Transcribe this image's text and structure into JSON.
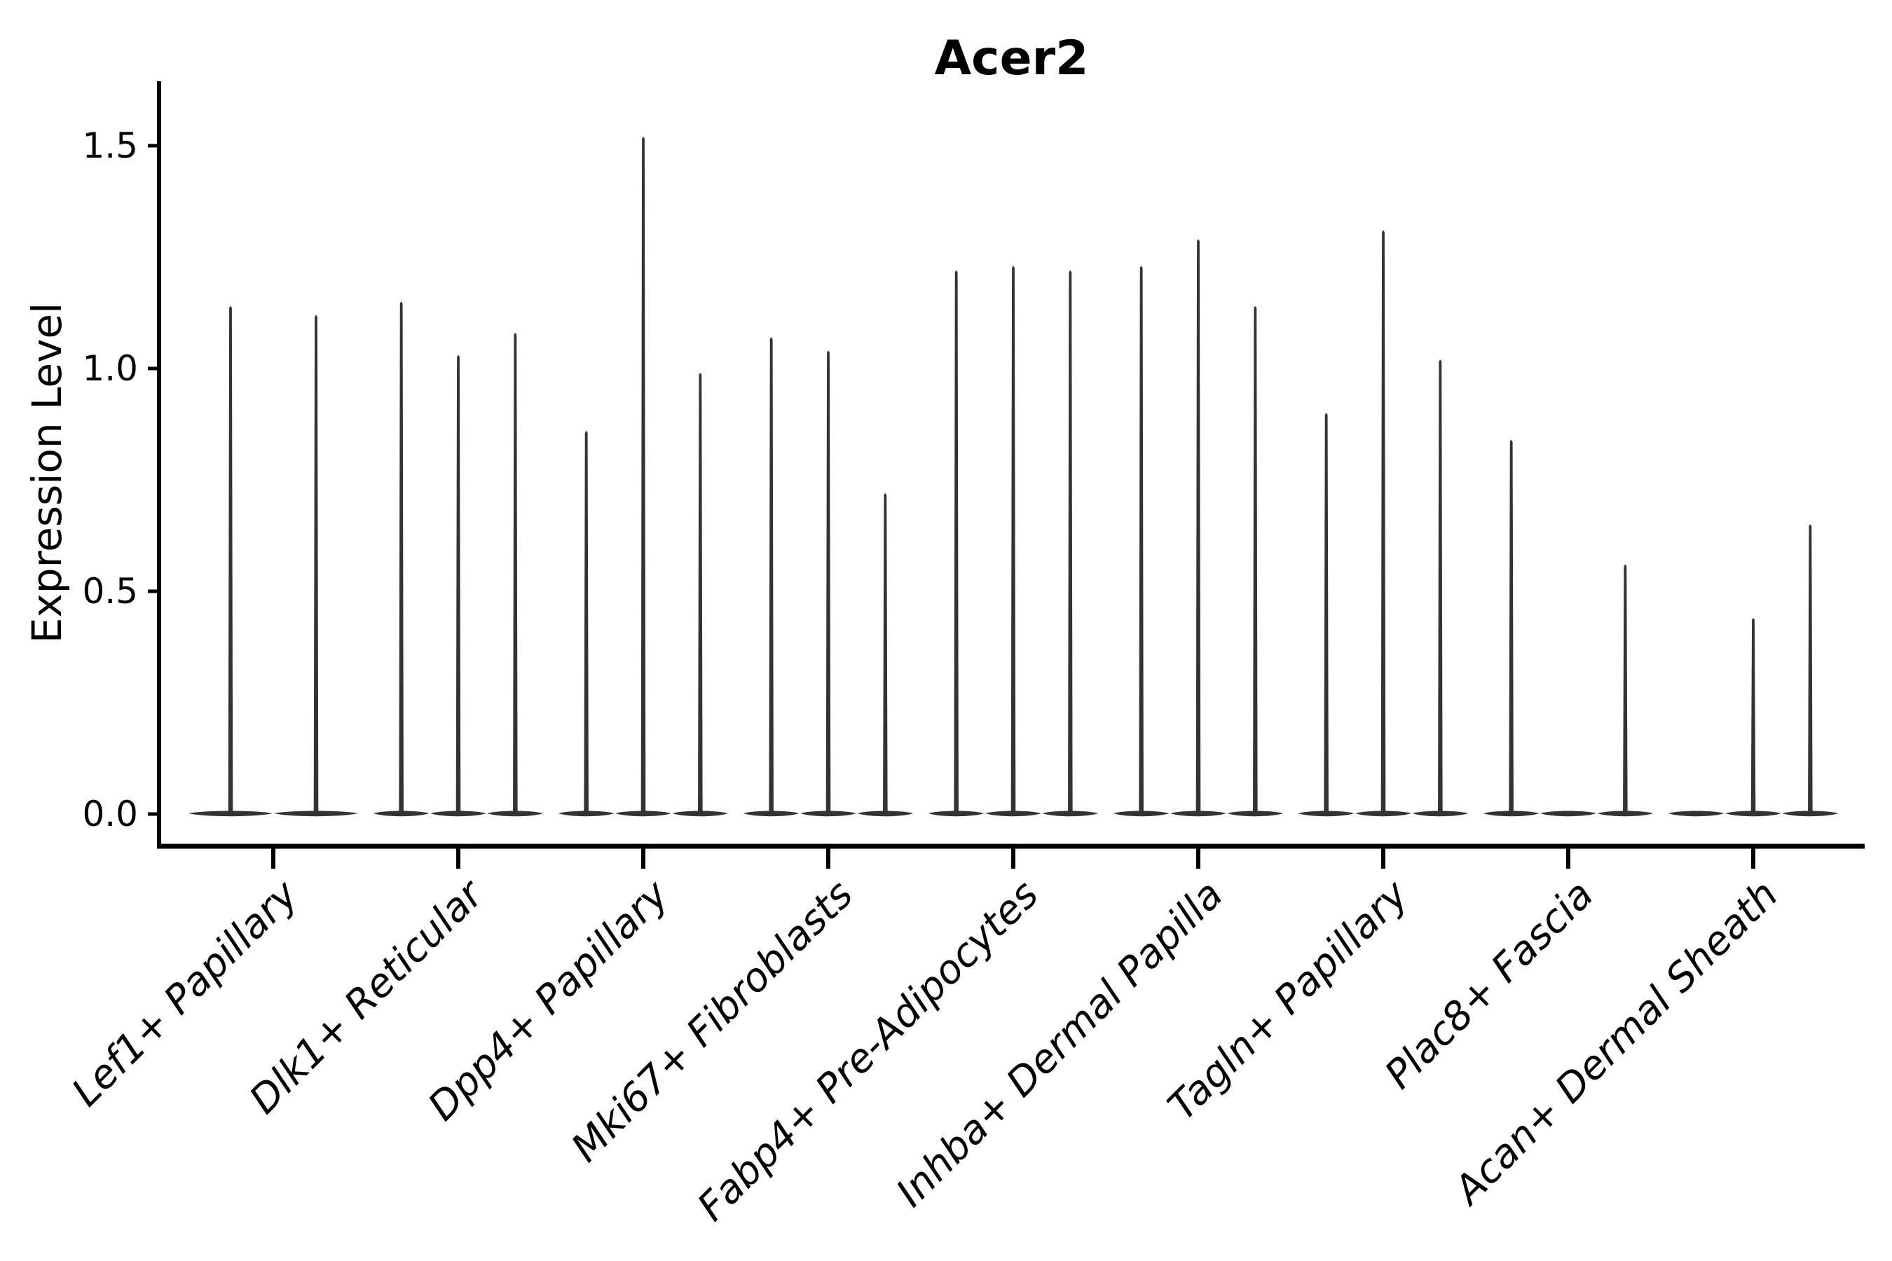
{
  "title": "Acer2",
  "y_axis": {
    "label": "Expression Level",
    "tick_labels": [
      "0.0",
      "0.5",
      "1.0",
      "1.5"
    ]
  },
  "chart_data": {
    "type": "violin",
    "title": "Acer2",
    "xlabel": "",
    "ylabel": "Expression Level",
    "ylim": [
      -0.07,
      1.6
    ],
    "yticks": [
      0.0,
      0.5,
      1.0,
      1.5
    ],
    "legend": "none",
    "grid": false,
    "style": "collapsed violins: wide flat body at 0 with a thin spike rising to the per-violin maximum expression",
    "categories": [
      "Lef1+ Papillary",
      "Dlk1+ Reticular",
      "Dpp4+ Papillary",
      "Mki67+ Fibroblasts",
      "Fabp4+ Pre-Adipocytes",
      "Inhba+ Dermal Papilla",
      "Tagln+ Papillary",
      "Plac8+ Fascia",
      "Acan+ Dermal Sheath"
    ],
    "groups": [
      {
        "category": "Lef1+ Papillary",
        "violin_maxima": [
          1.14,
          1.12
        ]
      },
      {
        "category": "Dlk1+ Reticular",
        "violin_maxima": [
          1.15,
          1.03,
          1.08
        ]
      },
      {
        "category": "Dpp4+ Papillary",
        "violin_maxima": [
          0.86,
          1.52,
          0.99
        ]
      },
      {
        "category": "Mki67+ Fibroblasts",
        "violin_maxima": [
          1.07,
          1.04,
          0.72
        ]
      },
      {
        "category": "Fabp4+ Pre-Adipocytes",
        "violin_maxima": [
          1.22,
          1.23,
          1.22
        ]
      },
      {
        "category": "Inhba+ Dermal Papilla",
        "violin_maxima": [
          1.23,
          1.29,
          1.14
        ]
      },
      {
        "category": "Tagln+ Papillary",
        "violin_maxima": [
          0.9,
          1.31,
          1.02
        ]
      },
      {
        "category": "Plac8+ Fascia",
        "violin_maxima": [
          0.84,
          0.0,
          0.56
        ]
      },
      {
        "category": "Acan+ Dermal Sheath",
        "violin_maxima": [
          0.0,
          0.44,
          0.65
        ]
      }
    ],
    "colors": {
      "violin_fill": "#333333",
      "axis": "#000000",
      "text": "#000000",
      "background": "#ffffff"
    }
  }
}
